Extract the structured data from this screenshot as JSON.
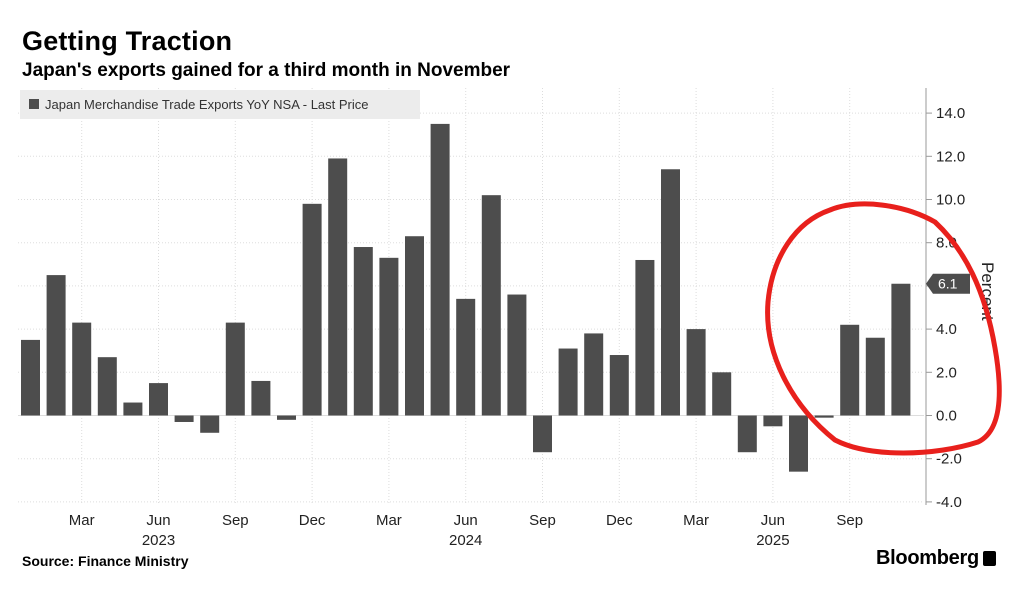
{
  "header": {
    "title": "Getting Traction",
    "subtitle": "Japan's exports gained for a third month in November"
  },
  "footer": {
    "source": "Source: Finance Ministry",
    "brand": "Bloomberg"
  },
  "colors": {
    "bar": "#4d4d4d",
    "grid": "#dddddd",
    "annotation": "#e8201c",
    "last_badge": "#4d4d4d"
  },
  "chart_data": {
    "type": "bar",
    "title": "Getting Traction",
    "subtitle": "Japan's exports gained for a third month in November",
    "legend": [
      "Japan Merchandise Trade Exports YoY NSA - Last Price"
    ],
    "ylabel": "Percent",
    "ylim": [
      -4,
      15
    ],
    "yticks": [
      14.0,
      12.0,
      10.0,
      8.0,
      6.0,
      4.0,
      2.0,
      0.0,
      -2.0,
      -4.0
    ],
    "ytick_labels": [
      "14.0",
      "12.0",
      "10.0",
      "8.0",
      "6.0",
      "4.0",
      "2.0",
      "0.0",
      "-2.0",
      "-4.0"
    ],
    "categories": [
      "2023-01",
      "2023-02",
      "2023-03",
      "2023-04",
      "2023-05",
      "2023-06",
      "2023-07",
      "2023-08",
      "2023-09",
      "2023-10",
      "2023-11",
      "2023-12",
      "2024-01",
      "2024-02",
      "2024-03",
      "2024-04",
      "2024-05",
      "2024-06",
      "2024-07",
      "2024-08",
      "2024-09",
      "2024-10",
      "2024-11",
      "2024-12",
      "2025-01",
      "2025-02",
      "2025-03",
      "2025-04",
      "2025-05",
      "2025-06",
      "2025-07",
      "2025-08",
      "2025-09",
      "2025-10",
      "2025-11"
    ],
    "values": [
      3.5,
      6.5,
      4.3,
      2.7,
      0.6,
      1.5,
      -0.3,
      -0.8,
      4.3,
      1.6,
      -0.2,
      9.8,
      11.9,
      7.8,
      7.3,
      8.3,
      13.5,
      5.4,
      10.2,
      5.6,
      -1.7,
      3.1,
      3.8,
      2.8,
      7.2,
      11.4,
      4.0,
      2.0,
      -1.7,
      -0.5,
      -2.6,
      -0.1,
      4.2,
      3.6,
      6.1
    ],
    "x_tick_labels": [
      {
        "index": 2,
        "label": "Mar"
      },
      {
        "index": 5,
        "label": "Jun"
      },
      {
        "index": 8,
        "label": "Sep"
      },
      {
        "index": 11,
        "label": "Dec"
      },
      {
        "index": 14,
        "label": "Mar"
      },
      {
        "index": 17,
        "label": "Jun"
      },
      {
        "index": 20,
        "label": "Sep"
      },
      {
        "index": 23,
        "label": "Dec"
      },
      {
        "index": 26,
        "label": "Mar"
      },
      {
        "index": 29,
        "label": "Jun"
      },
      {
        "index": 32,
        "label": "Sep"
      }
    ],
    "year_labels": [
      {
        "index": 5,
        "label": "2023"
      },
      {
        "index": 17,
        "label": "2024"
      },
      {
        "index": 29,
        "label": "2025"
      }
    ],
    "last_value_label": "6.1",
    "grid": true,
    "annotation": "hand-drawn red circle around the last four months"
  }
}
